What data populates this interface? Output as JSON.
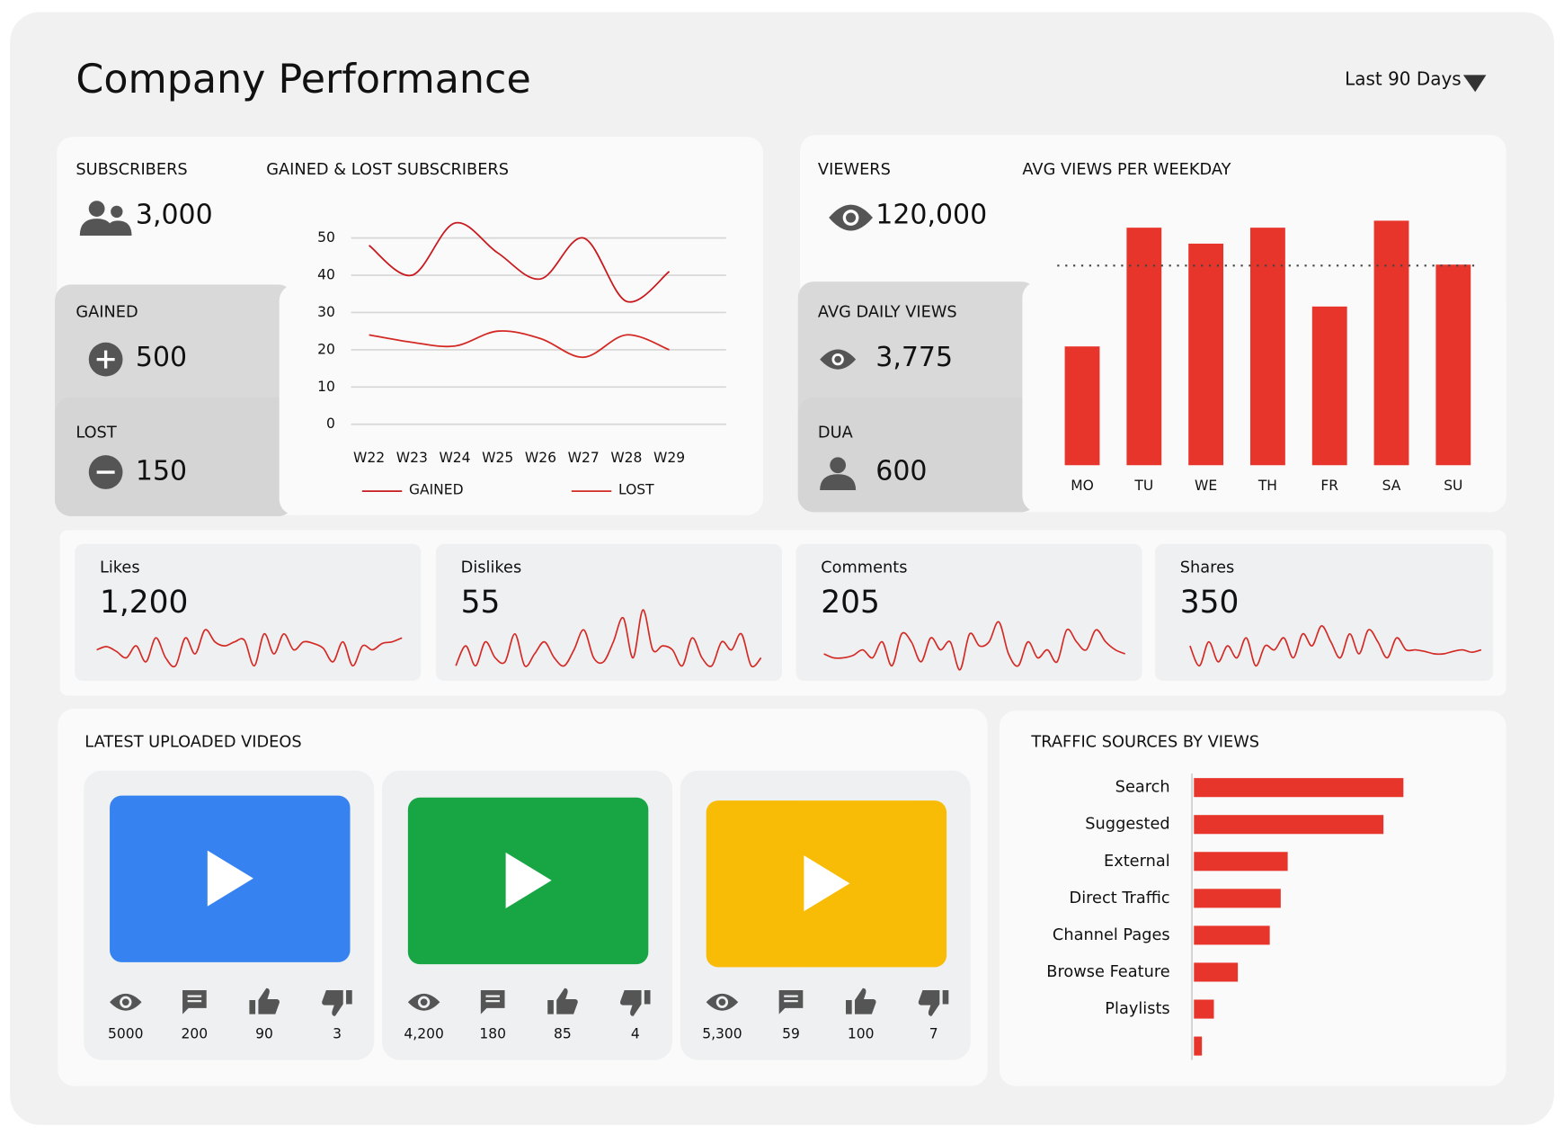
{
  "header": {
    "title": "Company Performance",
    "range": "Last 90 Days"
  },
  "subscribers": {
    "label": "SUBSCRIBERS",
    "total": "3,000",
    "gained_label": "GAINED",
    "gained": "500",
    "lost_label": "LOST",
    "lost": "150"
  },
  "subscriber_chart": {
    "type": "line",
    "title": "GAINED & LOST SUBSCRIBERS",
    "categories": [
      "W22",
      "W23",
      "W24",
      "W25",
      "W26",
      "W27",
      "W28",
      "W29"
    ],
    "series": [
      {
        "name": "GAINED",
        "color": "#c8191e",
        "values": [
          48,
          40,
          54,
          46,
          39,
          50,
          33,
          41
        ]
      },
      {
        "name": "LOST",
        "color": "#d42a25",
        "values": [
          24,
          22,
          21,
          25,
          23,
          18,
          24,
          20
        ]
      }
    ],
    "ylim": [
      0,
      60
    ],
    "yticks": [
      0,
      10,
      20,
      30,
      40,
      50
    ],
    "grid": true
  },
  "viewers": {
    "label": "VIEWERS",
    "total": "120,000",
    "avg_label": "AVG DAILY VIEWS",
    "avg": "3,775",
    "dua_label": "DUA",
    "dua": "600"
  },
  "weekday_chart": {
    "type": "bar",
    "title": "AVG VIEWS PER WEEKDAY",
    "categories": [
      "MO",
      "TU",
      "WE",
      "TH",
      "FR",
      "SA",
      "SU"
    ],
    "values": [
      1190,
      2380,
      2220,
      2380,
      1590,
      2450,
      2010
    ],
    "average": 2000,
    "color": "#e8352b",
    "ylim": [
      0,
      2500
    ]
  },
  "engagement": {
    "trend_ylim": [
      0,
      10
    ],
    "color": "#d42a25",
    "cards": [
      {
        "label": "Likes",
        "value": "1,200",
        "trend": [
          3,
          3.4,
          2.8,
          2,
          3.5,
          1.5,
          4.5,
          2,
          1,
          4.5,
          2.5,
          5.5,
          4,
          3.5,
          4,
          4.2,
          1,
          5,
          2.5,
          5,
          3,
          4,
          3.8,
          3.2,
          1.5,
          4,
          1,
          3.5,
          3,
          3.8,
          4,
          4.5
        ]
      },
      {
        "label": "Dislikes",
        "value": "55",
        "trend": [
          1,
          3.5,
          1,
          4,
          2,
          1.5,
          5,
          1,
          2.5,
          4,
          2,
          1,
          3,
          5.5,
          2,
          1.5,
          4,
          7,
          2,
          8,
          3,
          3.5,
          3,
          1,
          4.5,
          2,
          1,
          4,
          3,
          5,
          1,
          2
        ]
      },
      {
        "label": "Comments",
        "value": "205",
        "trend": [
          2.5,
          2,
          2,
          2.3,
          3,
          2,
          4,
          1,
          5,
          4,
          1.5,
          4.5,
          3,
          4,
          0.5,
          5,
          3.5,
          4,
          6.5,
          2.5,
          1,
          4,
          2,
          3,
          1.5,
          5.5,
          4,
          3,
          5.5,
          4,
          3,
          2.5
        ]
      },
      {
        "label": "Shares",
        "value": "350",
        "trend": [
          3.5,
          1,
          4,
          1.5,
          3.5,
          2,
          4.5,
          1,
          3.5,
          3,
          4.5,
          2,
          5,
          3.5,
          6,
          4,
          2,
          5,
          2.5,
          5.5,
          4,
          2,
          4.5,
          3,
          3,
          2.8,
          2.5,
          2.5,
          2.8,
          3,
          2.7,
          3
        ]
      }
    ]
  },
  "videos": {
    "title": "LATEST UPLOADED VIDEOS",
    "items": [
      {
        "color": "#3582f0",
        "views": "5000",
        "comments": "200",
        "likes": "90",
        "dislikes": "3"
      },
      {
        "color": "#18a645",
        "views": "4,200",
        "comments": "180",
        "likes": "85",
        "dislikes": "4"
      },
      {
        "color": "#f8bb06",
        "views": "5,300",
        "comments": "59",
        "likes": "100",
        "dislikes": "7"
      }
    ]
  },
  "traffic_chart": {
    "type": "bar",
    "orientation": "horizontal",
    "title": "TRAFFIC SOURCES BY VIEWS",
    "categories": [
      "Search",
      "Suggested",
      "External",
      "Direct Traffic",
      "Channel Pages",
      "Browse Feature",
      "Playlists",
      null
    ],
    "values": [
      210,
      190,
      94,
      87,
      76,
      44,
      20,
      8
    ],
    "color": "#e8352b",
    "xlim": [
      0,
      220
    ]
  }
}
